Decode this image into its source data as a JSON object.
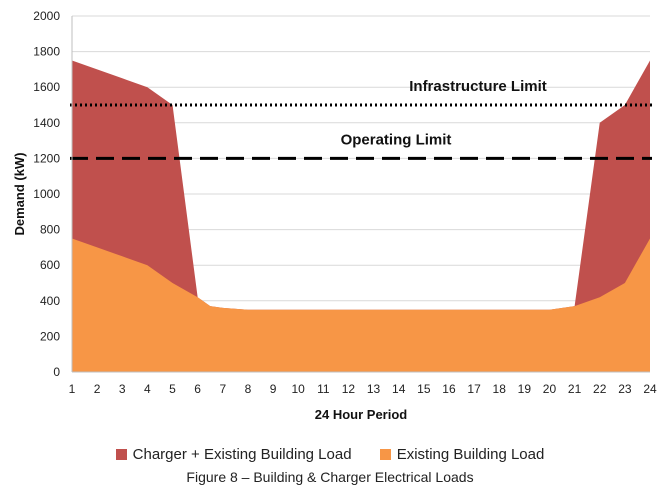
{
  "chart_data": {
    "type": "area",
    "x": [
      1,
      2,
      3,
      4,
      5,
      6,
      6.5,
      7,
      8,
      9,
      10,
      11,
      12,
      13,
      14,
      15,
      16,
      17,
      18,
      19,
      20,
      21,
      22,
      23,
      24
    ],
    "series": [
      {
        "name": "Charger + Existing Building Load",
        "color": "#c0504d",
        "values": [
          1750,
          1700,
          1650,
          1600,
          1500,
          420,
          370,
          360,
          350,
          350,
          350,
          350,
          350,
          350,
          350,
          350,
          350,
          350,
          350,
          350,
          350,
          370,
          1400,
          1500,
          1750
        ]
      },
      {
        "name": "Existing Building Load",
        "color": "#f79646",
        "values": [
          750,
          700,
          650,
          600,
          500,
          420,
          370,
          360,
          350,
          350,
          350,
          350,
          350,
          350,
          350,
          350,
          350,
          350,
          350,
          350,
          350,
          370,
          420,
          500,
          750
        ]
      }
    ],
    "reference_lines": [
      {
        "label": "Infrastructure Limit",
        "value": 1500,
        "style": "dotted"
      },
      {
        "label": "Operating Limit",
        "value": 1200,
        "style": "dashed"
      }
    ],
    "xlabel": "24 Hour Period",
    "ylabel": "Demand (kW)",
    "xlim": [
      1,
      24
    ],
    "ylim": [
      0,
      2000
    ],
    "xticks": [
      1,
      2,
      3,
      4,
      5,
      6,
      7,
      8,
      9,
      10,
      11,
      12,
      13,
      14,
      15,
      16,
      17,
      18,
      19,
      20,
      21,
      22,
      23,
      24
    ],
    "yticks": [
      0,
      200,
      400,
      600,
      800,
      1000,
      1200,
      1400,
      1600,
      1800,
      2000
    ],
    "grid": "horizontal",
    "legend": "bottom"
  },
  "caption": "Figure 8 – Building & Charger Electrical Loads"
}
